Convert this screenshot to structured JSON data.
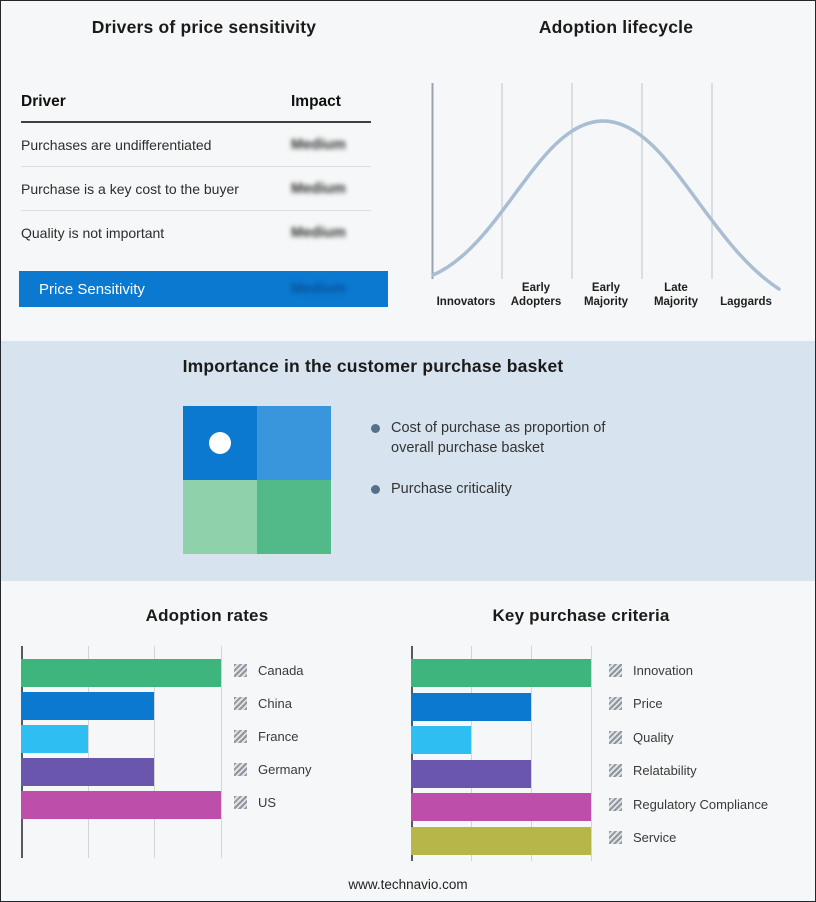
{
  "drivers_panel": {
    "title": "Drivers of price sensitivity",
    "columns": {
      "driver": "Driver",
      "impact": "Impact"
    },
    "rows": [
      {
        "driver": "Purchases are undifferentiated",
        "impact": "Medium"
      },
      {
        "driver": "Purchase is a key cost to the buyer",
        "impact": "Medium"
      },
      {
        "driver": "Quality is not important",
        "impact": "Medium"
      }
    ],
    "summary_row": {
      "driver": "Price Sensitivity",
      "impact": "Medium"
    }
  },
  "basket_panel": {
    "title": "Importance in the customer purchase basket",
    "bullets": [
      "Cost of purchase as proportion of overall purchase basket",
      "Purchase criticality"
    ],
    "quadrant_colors": [
      "#0b79d0",
      "#3996dc",
      "#8ed1ab",
      "#52ba89"
    ]
  },
  "footer": {
    "url": "www.technavio.com"
  },
  "colors": {
    "accent_blue": "#0b79d0",
    "band_background": "#d7e3ee",
    "bullet_dot": "#53718c"
  },
  "chart_data": [
    {
      "name": "adoption_lifecycle",
      "type": "line",
      "title": "Adoption lifecycle",
      "categories": [
        "Innovators",
        "Early Adopters",
        "Early Majority",
        "Late Majority",
        "Laggards"
      ],
      "shape": "bell curve rising from Innovators, peaking at Early Majority, falling through Laggards",
      "curve_color": "#a9bdd3",
      "grid": true,
      "legend_position": "none"
    },
    {
      "name": "adoption_rates",
      "type": "bar",
      "orientation": "horizontal",
      "title": "Adoption rates",
      "categories": [
        "Canada",
        "China",
        "France",
        "Germany",
        "US"
      ],
      "values": [
        3,
        2,
        1,
        2,
        3
      ],
      "xlim": [
        0,
        3
      ],
      "colors": [
        "#3fb57e",
        "#0b79d0",
        "#2fbef2",
        "#6a57ad",
        "#bd4fab"
      ],
      "grid": true,
      "legend_position": "right"
    },
    {
      "name": "key_purchase_criteria",
      "type": "bar",
      "orientation": "horizontal",
      "title": "Key purchase criteria",
      "categories": [
        "Innovation",
        "Price",
        "Quality",
        "Relatability",
        "Regulatory Compliance",
        "Service"
      ],
      "values": [
        3,
        2,
        1,
        2,
        3,
        3
      ],
      "xlim": [
        0,
        3
      ],
      "colors": [
        "#3fb57e",
        "#0b79d0",
        "#2fbef2",
        "#6a57ad",
        "#bd4fab",
        "#b6b748"
      ],
      "grid": true,
      "legend_position": "right"
    }
  ]
}
